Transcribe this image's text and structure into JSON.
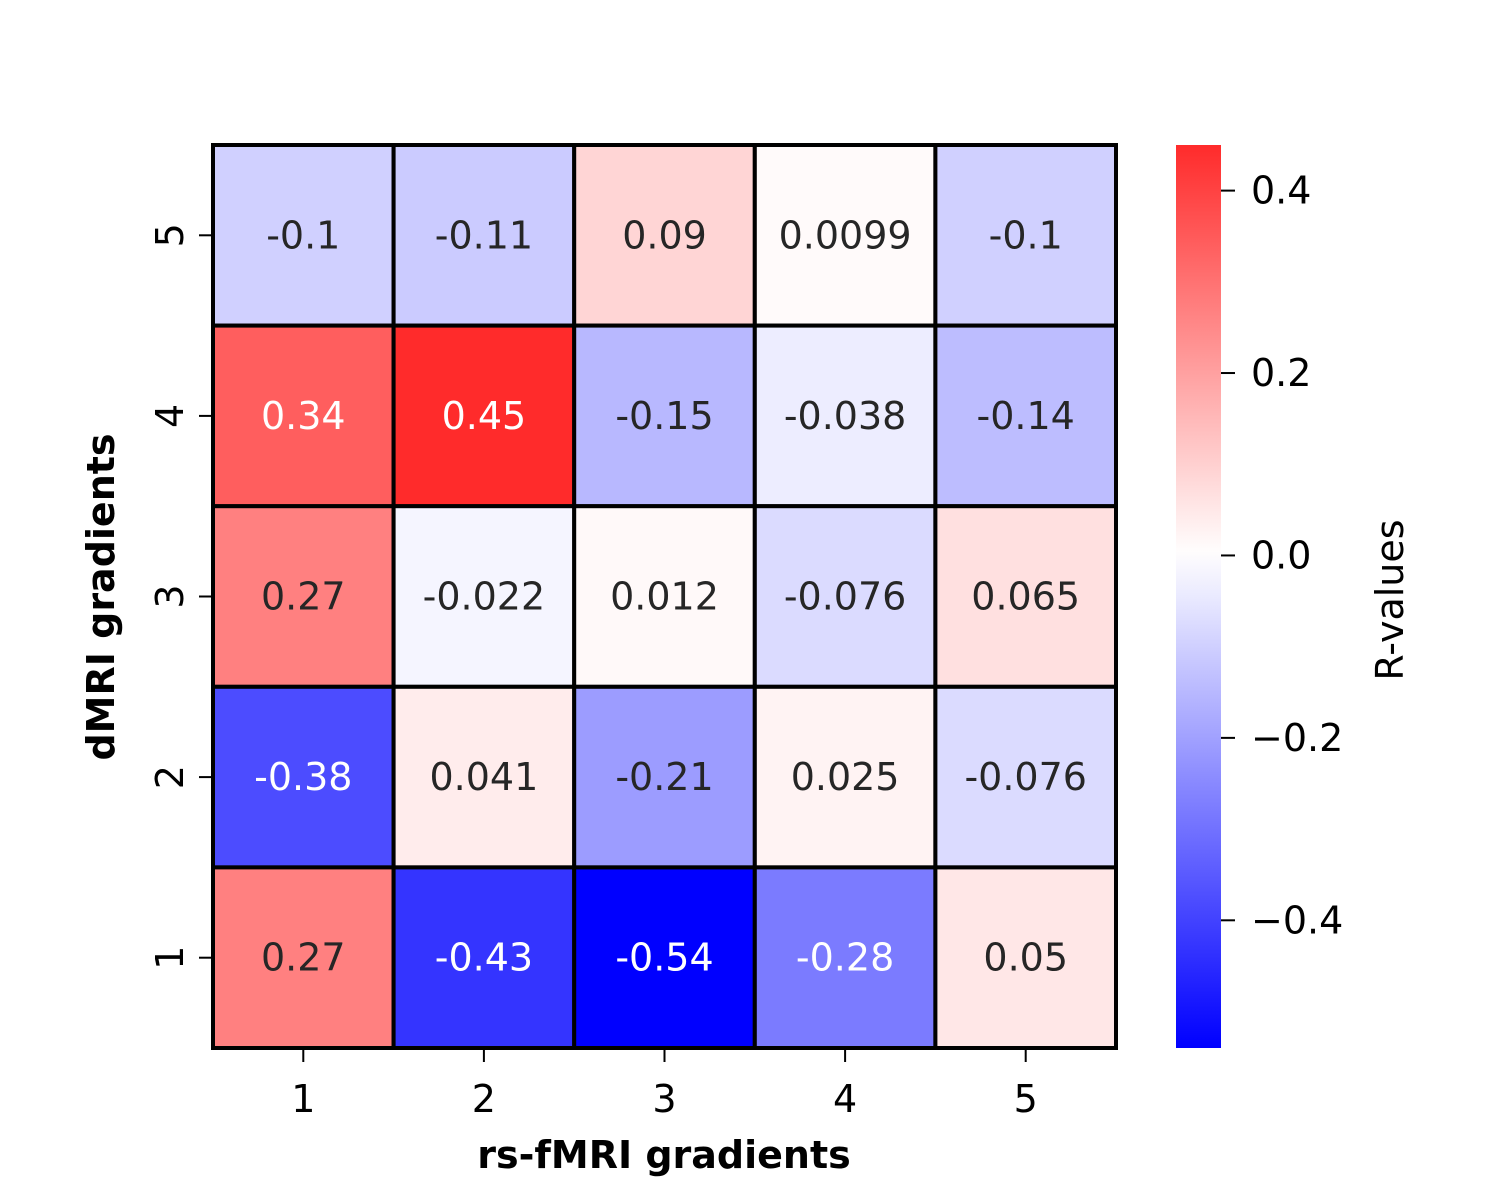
{
  "chart_data": {
    "type": "heatmap",
    "xlabel": "rs-fMRI gradients",
    "ylabel": "dMRI gradients",
    "x_categories": [
      "1",
      "2",
      "3",
      "4",
      "5"
    ],
    "y_categories": [
      "5",
      "4",
      "3",
      "2",
      "1"
    ],
    "values": [
      [
        -0.1,
        -0.11,
        0.09,
        0.0099,
        -0.1
      ],
      [
        0.34,
        0.45,
        -0.15,
        -0.038,
        -0.14
      ],
      [
        0.27,
        -0.022,
        0.012,
        -0.076,
        0.065
      ],
      [
        -0.38,
        0.041,
        -0.21,
        0.025,
        -0.076
      ],
      [
        0.27,
        -0.43,
        -0.54,
        -0.28,
        0.05
      ]
    ],
    "cell_labels": [
      [
        "-0.1",
        "-0.11",
        "0.09",
        "0.0099",
        "-0.1"
      ],
      [
        "0.34",
        "0.45",
        "-0.15",
        "-0.038",
        "-0.14"
      ],
      [
        "0.27",
        "-0.022",
        "0.012",
        "-0.076",
        "0.065"
      ],
      [
        "-0.38",
        "0.041",
        "-0.21",
        "0.025",
        "-0.076"
      ],
      [
        "0.27",
        "-0.43",
        "-0.54",
        "-0.28",
        "0.05"
      ]
    ],
    "colorbar": {
      "label": "R-values",
      "vmin": -0.54,
      "vmax": 0.45,
      "ticks": [
        0.4,
        0.2,
        0.0,
        -0.2,
        -0.4
      ],
      "tick_labels": [
        "0.4",
        "0.2",
        "0.0",
        "−0.2",
        "−0.4"
      ],
      "colormap": "bwr",
      "colors": {
        "negative": "#0000ff",
        "zero": "#ffffff",
        "positive": "#ff0000"
      }
    },
    "cell_border_color": "#000000"
  }
}
